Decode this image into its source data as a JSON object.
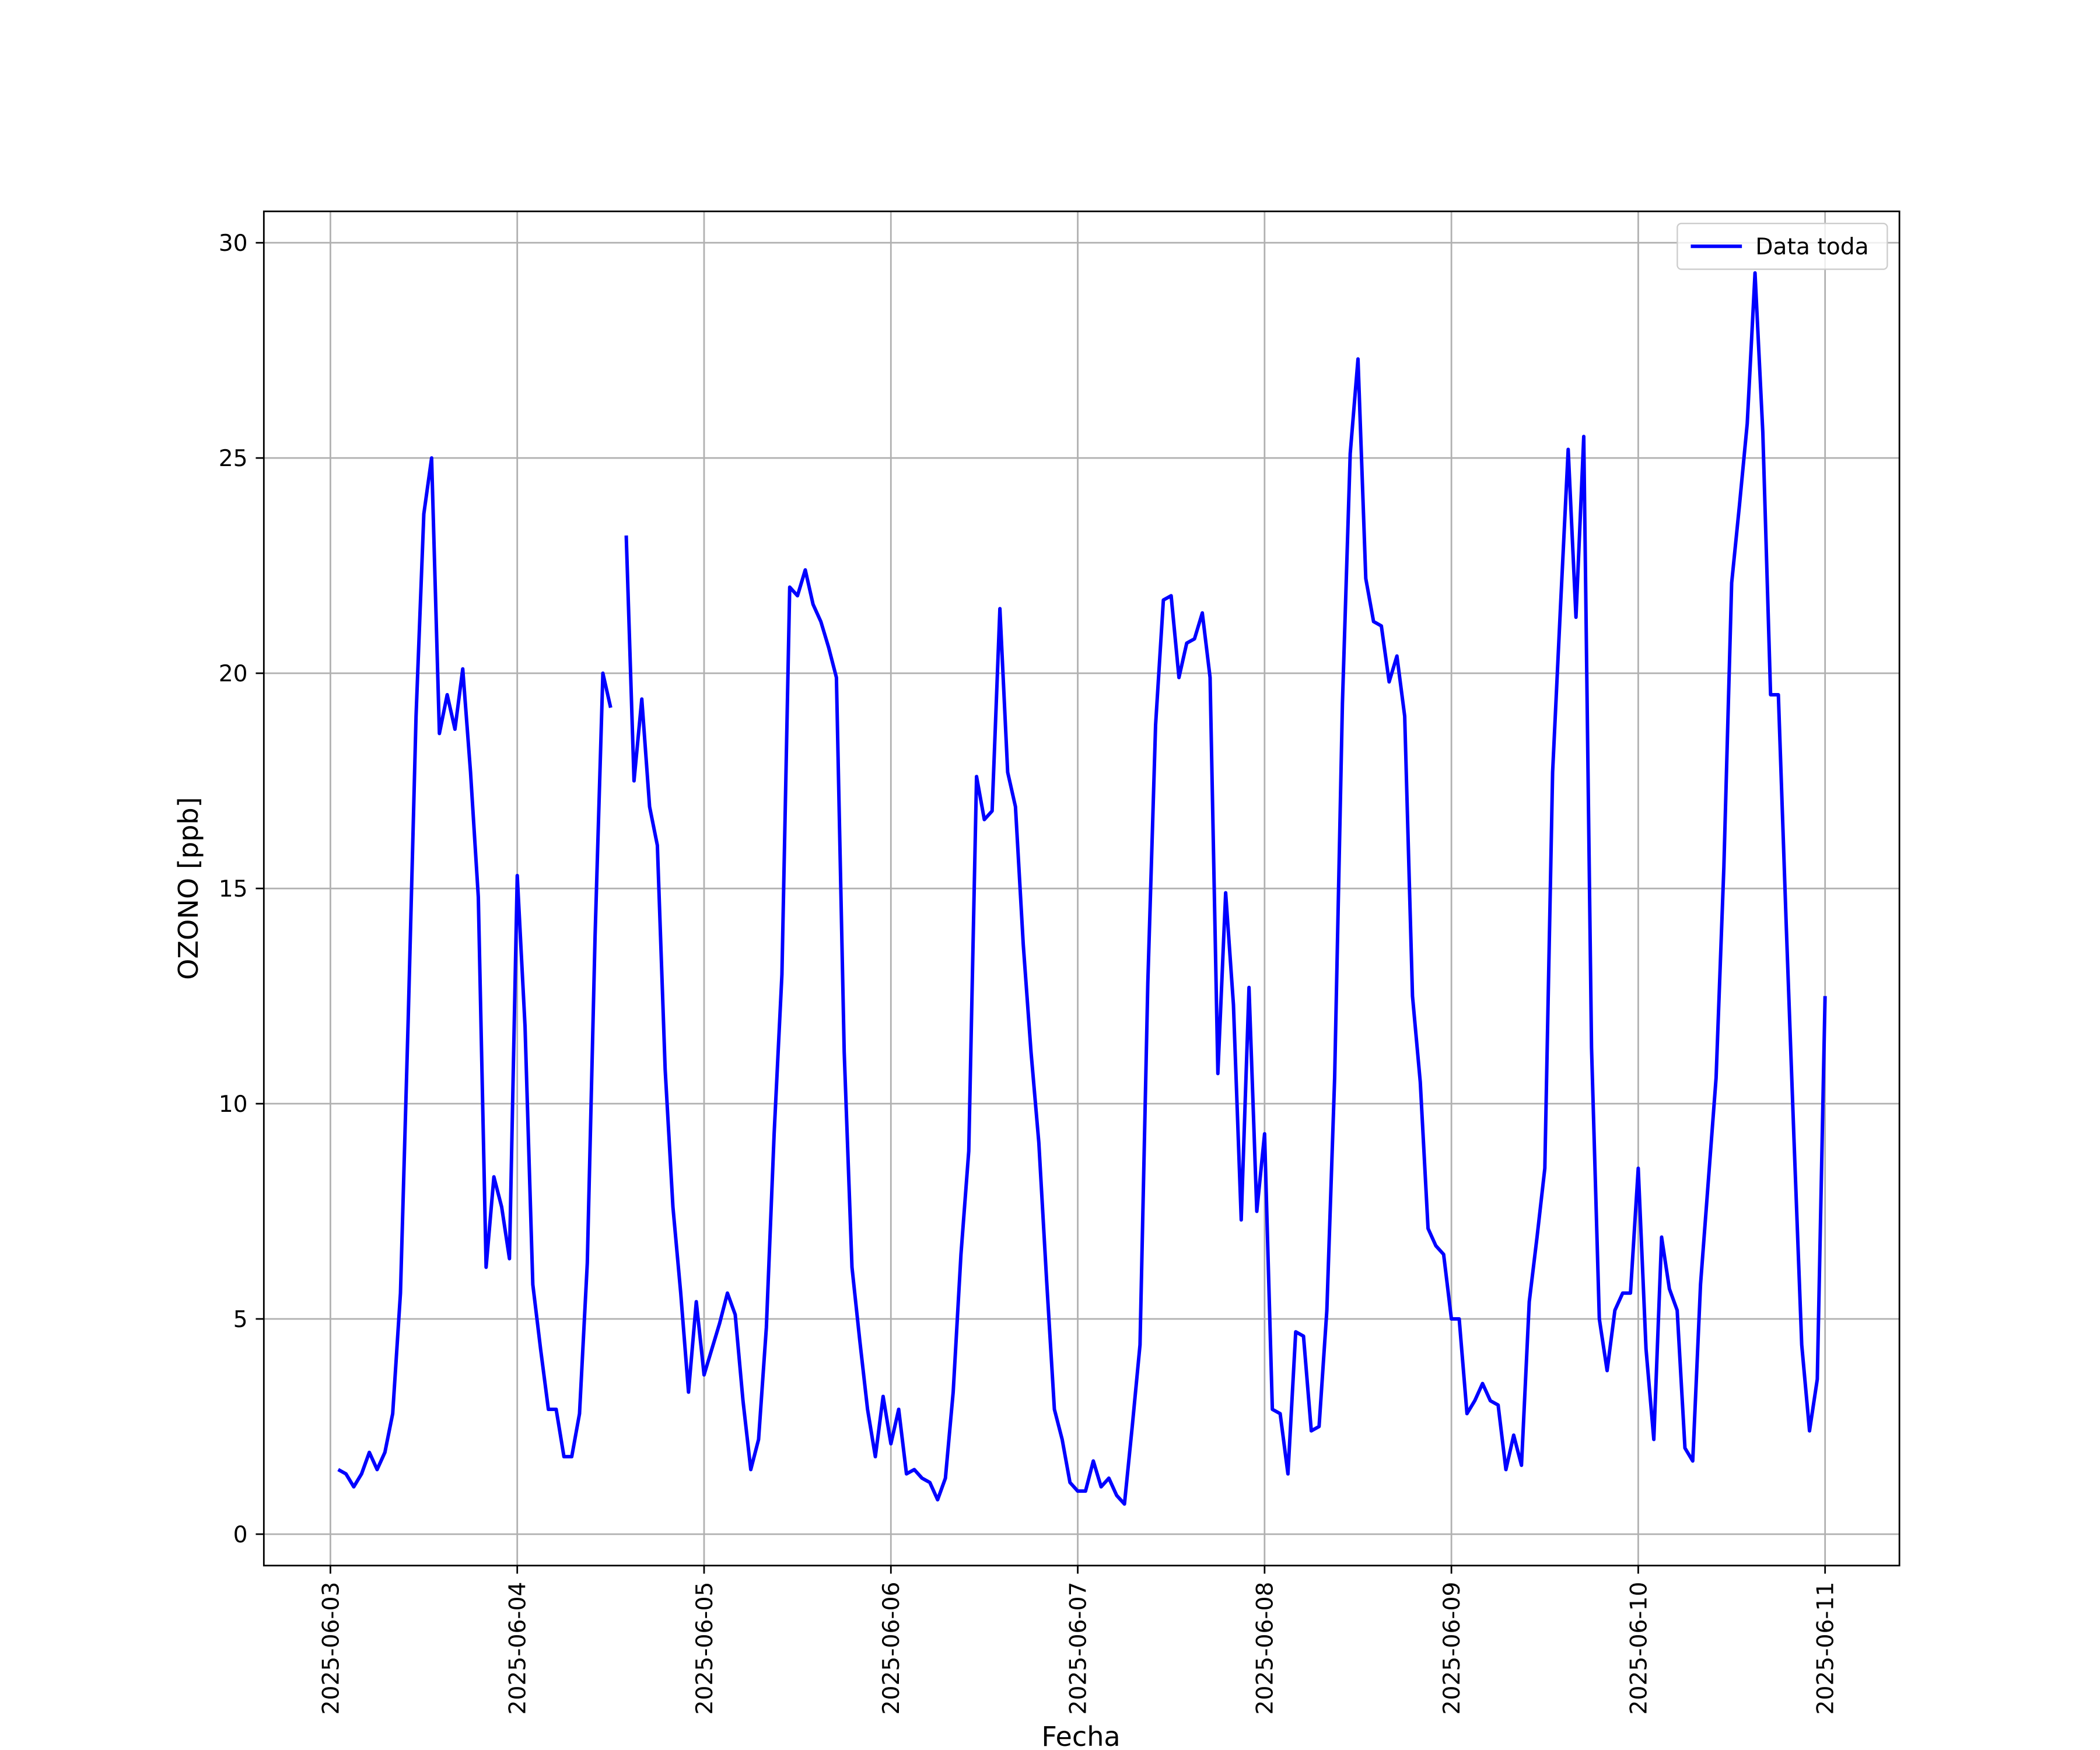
{
  "chart_data": {
    "type": "line",
    "x_label": "Fecha",
    "y_label": "OZONO [ppb]",
    "xlim": [
      "2025-06-02 15:27",
      "2025-06-11 09:33"
    ],
    "xticks": [
      "2025-06-03",
      "2025-06-04",
      "2025-06-05",
      "2025-06-06",
      "2025-06-07",
      "2025-06-08",
      "2025-06-09",
      "2025-06-10",
      "2025-06-11"
    ],
    "ylim": [
      -0.73,
      30.73
    ],
    "yticks": [
      0,
      5,
      10,
      15,
      20,
      25,
      30
    ],
    "grid": true,
    "legend": "upper right",
    "x": [
      "2025-06-03 01:00",
      "2025-06-03 02:00",
      "2025-06-03 03:00",
      "2025-06-03 04:00",
      "2025-06-03 05:00",
      "2025-06-03 06:00",
      "2025-06-03 07:00",
      "2025-06-03 08:00",
      "2025-06-03 09:00",
      "2025-06-03 10:00",
      "2025-06-03 11:00",
      "2025-06-03 12:00",
      "2025-06-03 13:00",
      "2025-06-03 14:00",
      "2025-06-03 15:00",
      "2025-06-03 16:00",
      "2025-06-03 17:00",
      "2025-06-03 18:00",
      "2025-06-03 19:00",
      "2025-06-03 20:00",
      "2025-06-03 21:00",
      "2025-06-03 22:00",
      "2025-06-03 23:00",
      "2025-06-04 00:00",
      "2025-06-04 01:00",
      "2025-06-04 02:00",
      "2025-06-04 03:00",
      "2025-06-04 04:00",
      "2025-06-04 05:00",
      "2025-06-04 06:00",
      "2025-06-04 07:00",
      "2025-06-04 08:00",
      "2025-06-04 09:00",
      "2025-06-04 10:00",
      "2025-06-04 11:00",
      "2025-06-04 12:00",
      "2025-06-04 13:00",
      "2025-06-04 14:00",
      "2025-06-04 15:00",
      "2025-06-04 16:00",
      "2025-06-04 17:00",
      "2025-06-04 18:00",
      "2025-06-04 19:00",
      "2025-06-04 20:00",
      "2025-06-04 21:00",
      "2025-06-04 22:00",
      "2025-06-04 23:00",
      "2025-06-05 00:00",
      "2025-06-05 01:00",
      "2025-06-05 02:00",
      "2025-06-05 03:00",
      "2025-06-05 04:00",
      "2025-06-05 05:00",
      "2025-06-05 06:00",
      "2025-06-05 07:00",
      "2025-06-05 08:00",
      "2025-06-05 09:00",
      "2025-06-05 10:00",
      "2025-06-05 11:00",
      "2025-06-05 12:00",
      "2025-06-05 13:00",
      "2025-06-05 14:00",
      "2025-06-05 15:00",
      "2025-06-05 16:00",
      "2025-06-05 17:00",
      "2025-06-05 18:00",
      "2025-06-05 19:00",
      "2025-06-05 20:00",
      "2025-06-05 21:00",
      "2025-06-05 22:00",
      "2025-06-05 23:00",
      "2025-06-06 00:00",
      "2025-06-06 01:00",
      "2025-06-06 02:00",
      "2025-06-06 03:00",
      "2025-06-06 04:00",
      "2025-06-06 05:00",
      "2025-06-06 06:00",
      "2025-06-06 07:00",
      "2025-06-06 08:00",
      "2025-06-06 09:00",
      "2025-06-06 10:00",
      "2025-06-06 11:00",
      "2025-06-06 12:00",
      "2025-06-06 13:00",
      "2025-06-06 14:00",
      "2025-06-06 15:00",
      "2025-06-06 16:00",
      "2025-06-06 17:00",
      "2025-06-06 18:00",
      "2025-06-06 19:00",
      "2025-06-06 20:00",
      "2025-06-06 21:00",
      "2025-06-06 22:00",
      "2025-06-06 23:00",
      "2025-06-07 00:00",
      "2025-06-07 01:00",
      "2025-06-07 02:00",
      "2025-06-07 03:00",
      "2025-06-07 04:00",
      "2025-06-07 05:00",
      "2025-06-07 06:00",
      "2025-06-07 07:00",
      "2025-06-07 08:00",
      "2025-06-07 09:00",
      "2025-06-07 10:00",
      "2025-06-07 11:00",
      "2025-06-07 12:00",
      "2025-06-07 13:00",
      "2025-06-07 14:00",
      "2025-06-07 15:00",
      "2025-06-07 16:00",
      "2025-06-07 17:00",
      "2025-06-07 18:00",
      "2025-06-07 19:00",
      "2025-06-07 20:00",
      "2025-06-07 21:00",
      "2025-06-07 22:00",
      "2025-06-07 23:00",
      "2025-06-08 00:00",
      "2025-06-08 01:00",
      "2025-06-08 02:00",
      "2025-06-08 03:00",
      "2025-06-08 04:00",
      "2025-06-08 05:00",
      "2025-06-08 06:00",
      "2025-06-08 07:00",
      "2025-06-08 08:00",
      "2025-06-08 09:00",
      "2025-06-08 10:00",
      "2025-06-08 11:00",
      "2025-06-08 12:00",
      "2025-06-08 13:00",
      "2025-06-08 14:00",
      "2025-06-08 15:00",
      "2025-06-08 16:00",
      "2025-06-08 17:00",
      "2025-06-08 18:00",
      "2025-06-08 19:00",
      "2025-06-08 20:00",
      "2025-06-08 21:00",
      "2025-06-08 22:00",
      "2025-06-08 23:00",
      "2025-06-09 00:00",
      "2025-06-09 01:00",
      "2025-06-09 02:00",
      "2025-06-09 03:00",
      "2025-06-09 04:00",
      "2025-06-09 05:00",
      "2025-06-09 06:00",
      "2025-06-09 07:00",
      "2025-06-09 08:00",
      "2025-06-09 09:00",
      "2025-06-09 10:00",
      "2025-06-09 11:00",
      "2025-06-09 12:00",
      "2025-06-09 13:00",
      "2025-06-09 14:00",
      "2025-06-09 15:00",
      "2025-06-09 16:00",
      "2025-06-09 17:00",
      "2025-06-09 18:00",
      "2025-06-09 19:00",
      "2025-06-09 20:00",
      "2025-06-09 21:00",
      "2025-06-09 22:00",
      "2025-06-09 23:00",
      "2025-06-10 00:00",
      "2025-06-10 01:00",
      "2025-06-10 02:00",
      "2025-06-10 03:00",
      "2025-06-10 04:00",
      "2025-06-10 05:00",
      "2025-06-10 06:00",
      "2025-06-10 07:00",
      "2025-06-10 08:00",
      "2025-06-10 09:00",
      "2025-06-10 10:00",
      "2025-06-10 11:00",
      "2025-06-10 12:00",
      "2025-06-10 13:00",
      "2025-06-10 14:00",
      "2025-06-10 15:00",
      "2025-06-10 16:00",
      "2025-06-10 17:00",
      "2025-06-10 18:00",
      "2025-06-10 19:00",
      "2025-06-10 20:00",
      "2025-06-10 21:00",
      "2025-06-10 22:00",
      "2025-06-10 23:00",
      "2025-06-11 00:00"
    ],
    "series": [
      {
        "name": "Data toda",
        "color": "#0000ff",
        "values": [
          1.5,
          1.4,
          1.1,
          1.4,
          1.9,
          1.5,
          1.9,
          2.8,
          5.6,
          12,
          19,
          23.7,
          25,
          18.6,
          19.5,
          18.7,
          20.1,
          17.7,
          14.8,
          6.2,
          8.3,
          7.6,
          6.4,
          15.3,
          11.8,
          5.8,
          4.3,
          2.9,
          2.9,
          1.8,
          1.8,
          2.8,
          6.3,
          13.9,
          20,
          19.2,
          null,
          23.2,
          17.5,
          19.4,
          16.9,
          16,
          10.8,
          7.6,
          5.6,
          3.3,
          5.4,
          3.7,
          4.3,
          4.9,
          5.6,
          5.1,
          3.1,
          1.5,
          2.2,
          4.8,
          9.3,
          13,
          22,
          21.8,
          22.4,
          21.6,
          21.2,
          20.6,
          19.9,
          11.2,
          6.2,
          4.5,
          2.9,
          1.8,
          3.2,
          2.1,
          2.9,
          1.4,
          1.5,
          1.3,
          1.2,
          0.8,
          1.3,
          3.3,
          6.5,
          8.9,
          17.6,
          16.6,
          16.8,
          21.5,
          17.7,
          16.9,
          13.7,
          11.2,
          9.1,
          5.9,
          2.9,
          2.2,
          1.2,
          1.0,
          1.0,
          1.7,
          1.1,
          1.3,
          0.9,
          0.7,
          2.5,
          4.4,
          12.8,
          18.8,
          21.7,
          21.8,
          19.9,
          20.7,
          20.8,
          21.4,
          19.9,
          10.7,
          14.9,
          12.3,
          7.3,
          12.7,
          7.5,
          9.3,
          2.9,
          2.8,
          1.4,
          4.7,
          4.6,
          2.4,
          2.5,
          5.2,
          10.6,
          19.3,
          25.1,
          27.3,
          22.2,
          21.2,
          21.1,
          19.8,
          20.4,
          19,
          12.5,
          10.5,
          7.1,
          6.7,
          6.5,
          5,
          5,
          2.8,
          3.1,
          3.5,
          3.1,
          3.0,
          1.5,
          2.3,
          1.6,
          5.4,
          6.9,
          8.5,
          17.7,
          21.5,
          25.2,
          21.3,
          25.5,
          11.3,
          5,
          3.8,
          5.2,
          5.6,
          5.6,
          8.5,
          4.3,
          2.2,
          6.9,
          5.7,
          5.2,
          2,
          1.7,
          5.8,
          8.2,
          10.6,
          15.5,
          22.1,
          23.9,
          25.8,
          29.3,
          25.6,
          19.5,
          19.5,
          14.2,
          9.2,
          4.4,
          2.4,
          3.6,
          12.5
        ]
      }
    ]
  }
}
